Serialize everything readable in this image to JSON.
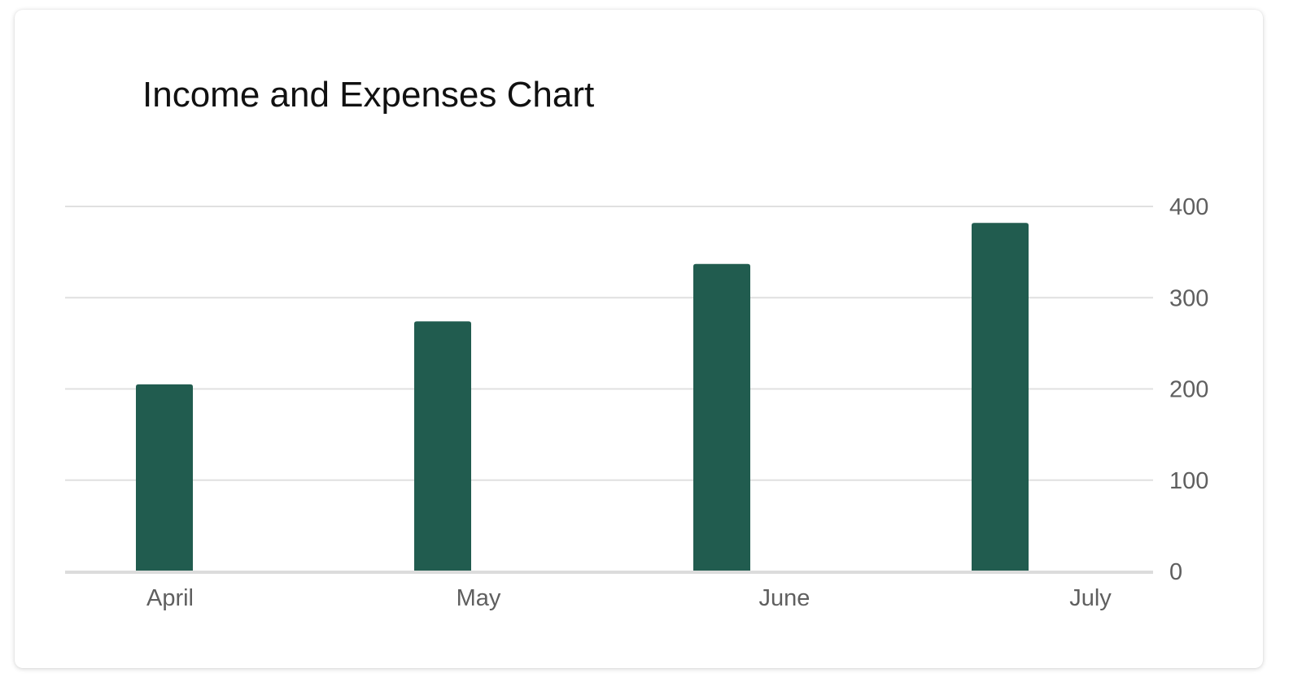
{
  "chart_data": {
    "type": "bar",
    "title": "Income and Expenses Chart",
    "xlabel": "",
    "ylabel": "",
    "categories": [
      "April",
      "May",
      "June",
      "July"
    ],
    "x_tick_labels": [
      "April",
      "May",
      "June",
      "July"
    ],
    "series": [
      {
        "values": [
          205,
          274,
          337,
          382
        ]
      }
    ],
    "y_ticks": [
      "0",
      "100",
      "200",
      "300",
      "400"
    ],
    "ylim": [
      0,
      400
    ],
    "y_axis_position": "right",
    "grid": true,
    "legend": "none",
    "colors": {
      "bar": "#215c4f",
      "grid": "#e0e0e0",
      "baseline": "#dcdcdc",
      "tick_text": "#5f5f5f",
      "title_text": "#111111"
    }
  }
}
